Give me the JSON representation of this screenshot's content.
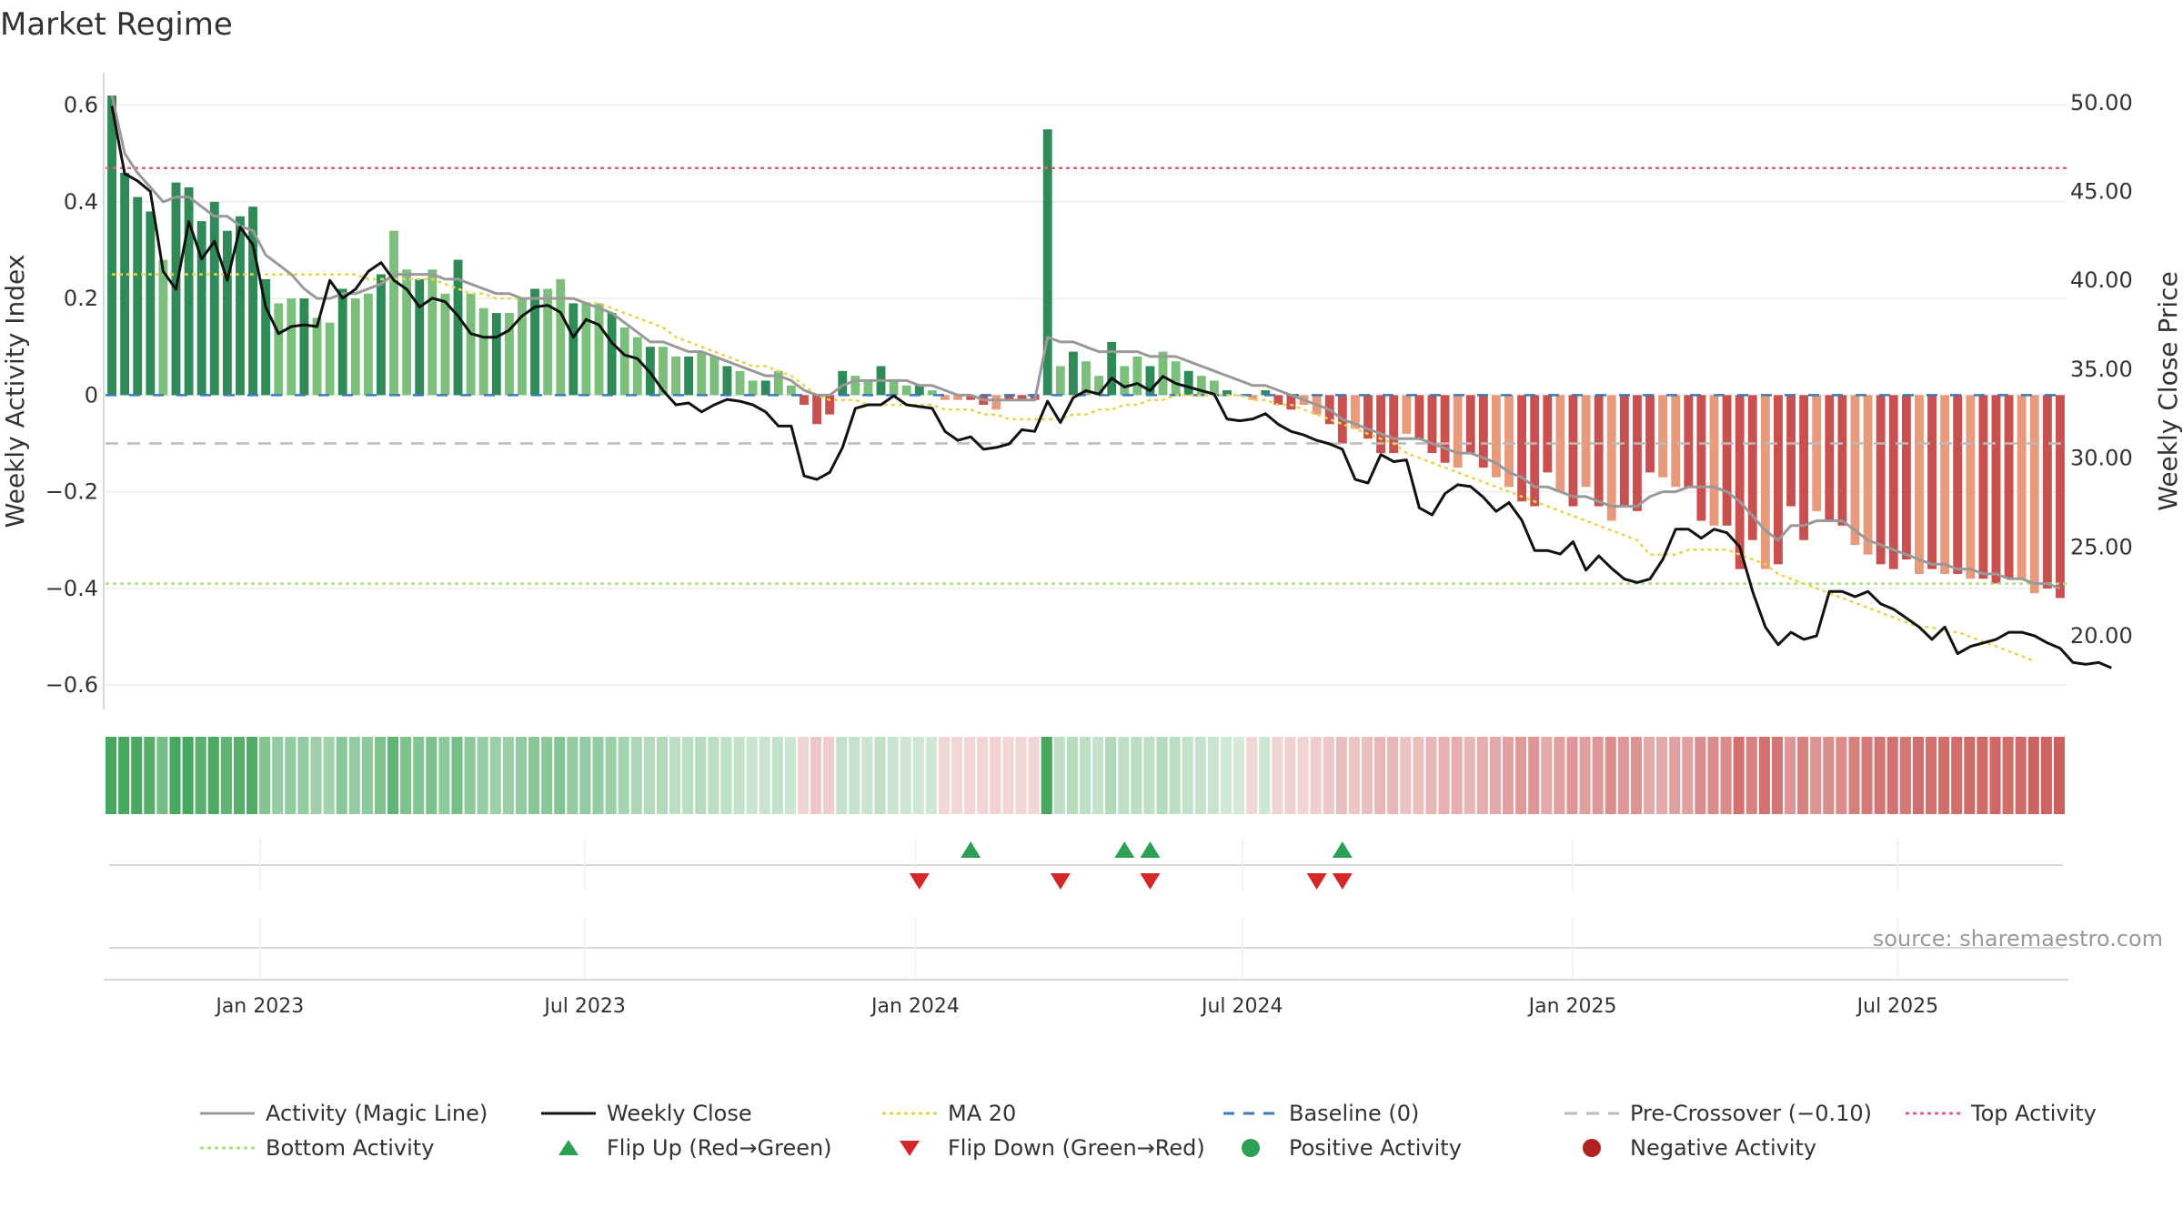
{
  "title": "Market Regime",
  "source": "source: sharemaestro.com",
  "colors": {
    "pos_dark": "#2e8b57",
    "pos_light": "#7cbf7c",
    "neg_dark": "#c9504f",
    "neg_light": "#e89a7a",
    "activity_line": "#999999",
    "close_line": "#111111",
    "ma_line": "#e8d44d",
    "baseline": "#3a7abd",
    "precross": "#bbbbbb",
    "top": "#e0607a",
    "bottom": "#a8e07a",
    "flip_up": "#2ca055",
    "flip_down": "#d62728",
    "neg_dot": "#b22222"
  },
  "chart_data": {
    "type": "bar",
    "title": "Market Regime",
    "ylabel_left": "Weekly Activity Index",
    "ylabel_right": "Weekly Close Price",
    "ylim_left": [
      -0.66,
      0.62
    ],
    "ylim_right": [
      15.6,
      50.4
    ],
    "left_ticks": [
      "0.6",
      "0.4",
      "0.2",
      "0",
      "−0.2",
      "−0.4",
      "−0.6"
    ],
    "left_tick_values": [
      0.6,
      0.4,
      0.2,
      0,
      -0.2,
      -0.4,
      -0.6
    ],
    "right_ticks": [
      "50.00",
      "45.00",
      "40.00",
      "35.00",
      "30.00",
      "25.00",
      "20.00"
    ],
    "right_tick_values": [
      50,
      45,
      40,
      35,
      30,
      25,
      20
    ],
    "x_start": "2022-10-07",
    "x_end": "2025-10-03",
    "x_ticks": [
      {
        "label": "Jan 2023",
        "date": "2023-01-01"
      },
      {
        "label": "Jul 2023",
        "date": "2023-07-01"
      },
      {
        "label": "Jan 2024",
        "date": "2024-01-01"
      },
      {
        "label": "Jul 2024",
        "date": "2024-07-01"
      },
      {
        "label": "Jan 2025",
        "date": "2025-01-01"
      },
      {
        "label": "Jul 2025",
        "date": "2025-07-01"
      }
    ],
    "activity_values": [
      0.62,
      0.46,
      0.41,
      0.38,
      0.28,
      0.44,
      0.43,
      0.36,
      0.4,
      0.34,
      0.37,
      0.39,
      0.24,
      0.19,
      0.2,
      0.2,
      0.16,
      0.15,
      0.22,
      0.2,
      0.21,
      0.25,
      0.34,
      0.26,
      0.24,
      0.26,
      0.21,
      0.28,
      0.21,
      0.18,
      0.17,
      0.17,
      0.2,
      0.22,
      0.22,
      0.24,
      0.19,
      0.19,
      0.19,
      0.17,
      0.14,
      0.12,
      0.1,
      0.1,
      0.08,
      0.08,
      0.09,
      0.08,
      0.06,
      0.05,
      0.03,
      0.03,
      0.05,
      0.02,
      -0.02,
      -0.06,
      -0.04,
      0.05,
      0.04,
      0.03,
      0.06,
      0.03,
      0.02,
      0.02,
      0.01,
      -0.01,
      -0.01,
      -0.01,
      -0.02,
      -0.03,
      -0.01,
      -0.01,
      -0.01,
      0.55,
      0.06,
      0.09,
      0.07,
      0.04,
      0.11,
      0.06,
      0.08,
      0.06,
      0.09,
      0.07,
      0.05,
      0.04,
      0.03,
      0.01,
      0.0,
      -0.01,
      0.01,
      -0.02,
      -0.03,
      -0.02,
      -0.04,
      -0.06,
      -0.1,
      -0.07,
      -0.09,
      -0.12,
      -0.12,
      -0.08,
      -0.09,
      -0.12,
      -0.14,
      -0.15,
      -0.12,
      -0.15,
      -0.17,
      -0.19,
      -0.22,
      -0.23,
      -0.16,
      -0.2,
      -0.23,
      -0.19,
      -0.23,
      -0.26,
      -0.23,
      -0.24,
      -0.16,
      -0.17,
      -0.19,
      -0.19,
      -0.26,
      -0.27,
      -0.27,
      -0.36,
      -0.3,
      -0.36,
      -0.35,
      -0.23,
      -0.3,
      -0.24,
      -0.26,
      -0.27,
      -0.31,
      -0.33,
      -0.35,
      -0.36,
      -0.34,
      -0.37,
      -0.36,
      -0.37,
      -0.37,
      -0.38,
      -0.38,
      -0.39,
      -0.38,
      -0.38,
      -0.41,
      -0.4,
      -0.42
    ],
    "close_prices": [
      49.8,
      46.0,
      45.6,
      45.0,
      40.5,
      39.5,
      43.3,
      41.2,
      42.2,
      40.0,
      43.0,
      42.0,
      38.5,
      37.0,
      37.4,
      37.5,
      37.4,
      40.0,
      39.0,
      39.5,
      40.5,
      41.0,
      40.0,
      39.5,
      38.5,
      39.0,
      38.8,
      38.0,
      37.0,
      36.8,
      36.8,
      37.2,
      38.0,
      38.5,
      38.6,
      38.2,
      36.8,
      37.8,
      37.5,
      36.5,
      35.8,
      35.6,
      34.8,
      33.8,
      33.0,
      33.1,
      32.6,
      33.0,
      33.3,
      33.2,
      33.0,
      32.6,
      31.8,
      31.8,
      29.0,
      28.8,
      29.2,
      30.6,
      32.8,
      33.0,
      33.0,
      33.5,
      33.0,
      32.9,
      32.8,
      31.5,
      31.0,
      31.2,
      30.5,
      30.6,
      30.8,
      31.6,
      31.5,
      33.2,
      32.0,
      33.4,
      33.8,
      33.6,
      34.5,
      34.0,
      34.2,
      33.8,
      34.6,
      34.2,
      34.0,
      33.8,
      33.6,
      32.2,
      32.1,
      32.2,
      32.5,
      31.9,
      31.5,
      31.3,
      31.0,
      30.8,
      30.5,
      28.8,
      28.6,
      30.2,
      29.8,
      29.9,
      27.2,
      26.8,
      28.0,
      28.5,
      28.4,
      27.8,
      27.0,
      27.5,
      26.5,
      24.8,
      24.8,
      24.6,
      25.3,
      23.7,
      24.5,
      23.8,
      23.2,
      23.0,
      23.2,
      24.3,
      26.0,
      26.0,
      25.5,
      26.0,
      25.8,
      25.0,
      22.5,
      20.5,
      19.5,
      20.2,
      19.8,
      20.0,
      22.5,
      22.5,
      22.2,
      22.5,
      21.8,
      21.5,
      21.0,
      20.5,
      19.8,
      20.5,
      19.0,
      19.4,
      19.6,
      19.8,
      20.2,
      20.2,
      20.0,
      19.6,
      19.3,
      18.5,
      18.4,
      18.5,
      18.2
    ],
    "activity_line": [
      0.62,
      0.5,
      0.46,
      0.43,
      0.4,
      0.41,
      0.41,
      0.39,
      0.37,
      0.37,
      0.35,
      0.34,
      0.29,
      0.27,
      0.25,
      0.22,
      0.2,
      0.2,
      0.21,
      0.21,
      0.22,
      0.23,
      0.25,
      0.25,
      0.25,
      0.25,
      0.24,
      0.24,
      0.23,
      0.22,
      0.21,
      0.21,
      0.2,
      0.2,
      0.2,
      0.2,
      0.2,
      0.19,
      0.18,
      0.17,
      0.15,
      0.13,
      0.11,
      0.11,
      0.1,
      0.09,
      0.09,
      0.08,
      0.07,
      0.06,
      0.05,
      0.04,
      0.04,
      0.03,
      0.01,
      0.0,
      0.0,
      0.02,
      0.03,
      0.03,
      0.03,
      0.03,
      0.03,
      0.02,
      0.02,
      0.01,
      0.0,
      0.0,
      -0.01,
      -0.01,
      -0.01,
      -0.01,
      -0.01,
      0.12,
      0.11,
      0.11,
      0.1,
      0.09,
      0.09,
      0.09,
      0.09,
      0.08,
      0.08,
      0.08,
      0.07,
      0.06,
      0.05,
      0.04,
      0.03,
      0.02,
      0.02,
      0.01,
      0.0,
      -0.01,
      -0.02,
      -0.03,
      -0.05,
      -0.06,
      -0.07,
      -0.08,
      -0.09,
      -0.09,
      -0.09,
      -0.1,
      -0.11,
      -0.12,
      -0.12,
      -0.13,
      -0.14,
      -0.16,
      -0.17,
      -0.19,
      -0.19,
      -0.2,
      -0.21,
      -0.21,
      -0.22,
      -0.23,
      -0.23,
      -0.23,
      -0.21,
      -0.2,
      -0.2,
      -0.19,
      -0.19,
      -0.19,
      -0.2,
      -0.22,
      -0.25,
      -0.28,
      -0.3,
      -0.27,
      -0.27,
      -0.26,
      -0.26,
      -0.26,
      -0.28,
      -0.3,
      -0.31,
      -0.32,
      -0.33,
      -0.34,
      -0.35,
      -0.35,
      -0.36,
      -0.36,
      -0.37,
      -0.37,
      -0.38,
      -0.38,
      -0.39,
      -0.39,
      -0.4
    ],
    "ma20": [
      0.25,
      0.25,
      0.25,
      0.25,
      0.25,
      0.25,
      0.25,
      0.25,
      0.25,
      0.25,
      0.25,
      0.25,
      0.25,
      0.25,
      0.25,
      0.25,
      0.25,
      0.25,
      0.25,
      0.25,
      0.24,
      0.24,
      0.24,
      0.24,
      0.24,
      0.24,
      0.23,
      0.22,
      0.21,
      0.21,
      0.2,
      0.2,
      0.2,
      0.2,
      0.2,
      0.2,
      0.2,
      0.19,
      0.19,
      0.18,
      0.17,
      0.16,
      0.15,
      0.14,
      0.12,
      0.11,
      0.1,
      0.09,
      0.08,
      0.07,
      0.06,
      0.06,
      0.05,
      0.04,
      0.02,
      0.0,
      -0.01,
      -0.01,
      -0.01,
      -0.02,
      -0.02,
      -0.02,
      -0.02,
      -0.02,
      -0.02,
      -0.03,
      -0.03,
      -0.03,
      -0.04,
      -0.04,
      -0.05,
      -0.05,
      -0.05,
      -0.05,
      -0.05,
      -0.04,
      -0.04,
      -0.03,
      -0.03,
      -0.02,
      -0.02,
      -0.01,
      -0.01,
      0.0,
      0.0,
      0.0,
      0.0,
      0.0,
      0.0,
      -0.01,
      -0.01,
      -0.02,
      -0.02,
      -0.03,
      -0.04,
      -0.05,
      -0.06,
      -0.07,
      -0.08,
      -0.09,
      -0.1,
      -0.12,
      -0.13,
      -0.14,
      -0.15,
      -0.16,
      -0.17,
      -0.18,
      -0.19,
      -0.2,
      -0.21,
      -0.22,
      -0.23,
      -0.24,
      -0.25,
      -0.26,
      -0.27,
      -0.28,
      -0.29,
      -0.3,
      -0.33,
      -0.33,
      -0.33,
      -0.32,
      -0.32,
      -0.32,
      -0.32,
      -0.33,
      -0.34,
      -0.35,
      -0.37,
      -0.38,
      -0.39,
      -0.4,
      -0.41,
      -0.42,
      -0.43,
      -0.44,
      -0.45,
      -0.46,
      -0.47,
      -0.48,
      -0.48,
      -0.49,
      -0.49,
      -0.5,
      -0.51,
      -0.52,
      -0.53,
      -0.54,
      -0.55
    ],
    "baseline": 0,
    "pre_crossover": -0.1,
    "top_activity": 0.47,
    "bottom_activity": -0.39,
    "flip_up_weeks": [
      67,
      79,
      81,
      96
    ],
    "flip_down_weeks": [
      63,
      74,
      81,
      94,
      96
    ],
    "legend": [
      {
        "label": "Activity (Magic Line)",
        "kind": "line",
        "color": "#999999",
        "dash": ""
      },
      {
        "label": "Weekly Close",
        "kind": "line",
        "color": "#111111",
        "dash": ""
      },
      {
        "label": "MA 20",
        "kind": "line",
        "color": "#e8d44d",
        "dash": "4 4"
      },
      {
        "label": "Baseline (0)",
        "kind": "line",
        "color": "#3a7abd",
        "dash": "12 10"
      },
      {
        "label": "Pre-Crossover (−0.10)",
        "kind": "line",
        "color": "#bbbbbb",
        "dash": "14 10"
      },
      {
        "label": "Top Activity",
        "kind": "line",
        "color": "#e0607a",
        "dash": "4 4"
      },
      {
        "label": "Bottom Activity",
        "kind": "line",
        "color": "#a8e07a",
        "dash": "4 4"
      },
      {
        "label": "Flip Up (Red→Green)",
        "kind": "up",
        "color": "#2ca055",
        "dash": ""
      },
      {
        "label": "Flip Down (Green→Red)",
        "kind": "down",
        "color": "#d62728",
        "dash": ""
      },
      {
        "label": "Positive Activity",
        "kind": "dot",
        "color": "#2ca055",
        "dash": ""
      },
      {
        "label": "Negative Activity",
        "kind": "dot",
        "color": "#b22222",
        "dash": ""
      }
    ]
  }
}
